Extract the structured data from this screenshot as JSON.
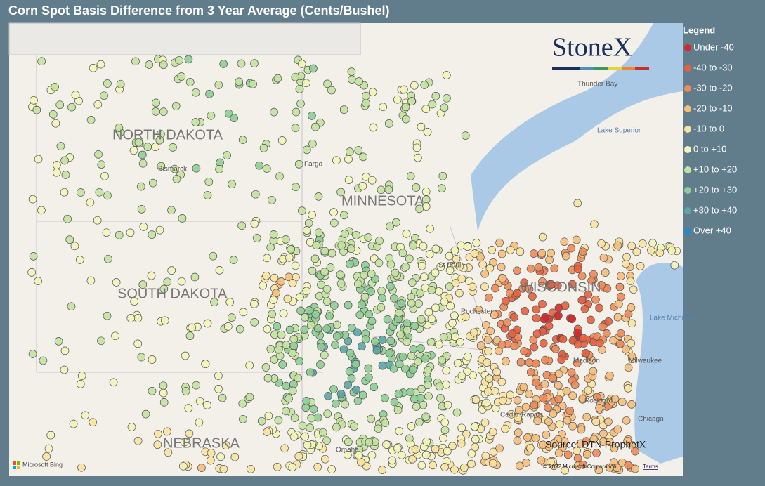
{
  "title": "Corn Spot Basis Difference from 3 Year Average (Cents/Bushel)",
  "legend": {
    "title": "Legend",
    "items": [
      {
        "label": "Under -40",
        "color": "#d42a2a"
      },
      {
        "label": "-40 to -30",
        "color": "#e6603e"
      },
      {
        "label": "-30 to -20",
        "color": "#ee8a58"
      },
      {
        "label": "-20 to -10",
        "color": "#f6bd7b"
      },
      {
        "label": "-10 to 0",
        "color": "#fbe3a1"
      },
      {
        "label": "0 to +10",
        "color": "#f3f5b9"
      },
      {
        "label": "+10 to +20",
        "color": "#c3e3a0"
      },
      {
        "label": "+20 to +30",
        "color": "#8dcd94"
      },
      {
        "label": "+30 to +40",
        "color": "#5aa5a5"
      },
      {
        "label": "Over +40",
        "color": "#2e86c1"
      }
    ]
  },
  "map": {
    "states": [
      "NORTH DAKOTA",
      "SOUTH DAKOTA",
      "MINNESOTA",
      "WISCONSIN",
      "NEBRASKA"
    ],
    "places": [
      "Bismarck",
      "Fargo",
      "Thunder Bay",
      "Lake Superior",
      "Lake Michigan",
      "Milwaukee",
      "Chicago",
      "Madison",
      "Rockford",
      "Cedar Rapids",
      "Rochester",
      "St Paul",
      "Omaha"
    ],
    "logo": "StoneX",
    "source": "Source: DTN ProphetX",
    "attribution": "Microsoft Bing",
    "copyright": "© 2022 Microsoft Corporation",
    "terms": "Terms"
  }
}
